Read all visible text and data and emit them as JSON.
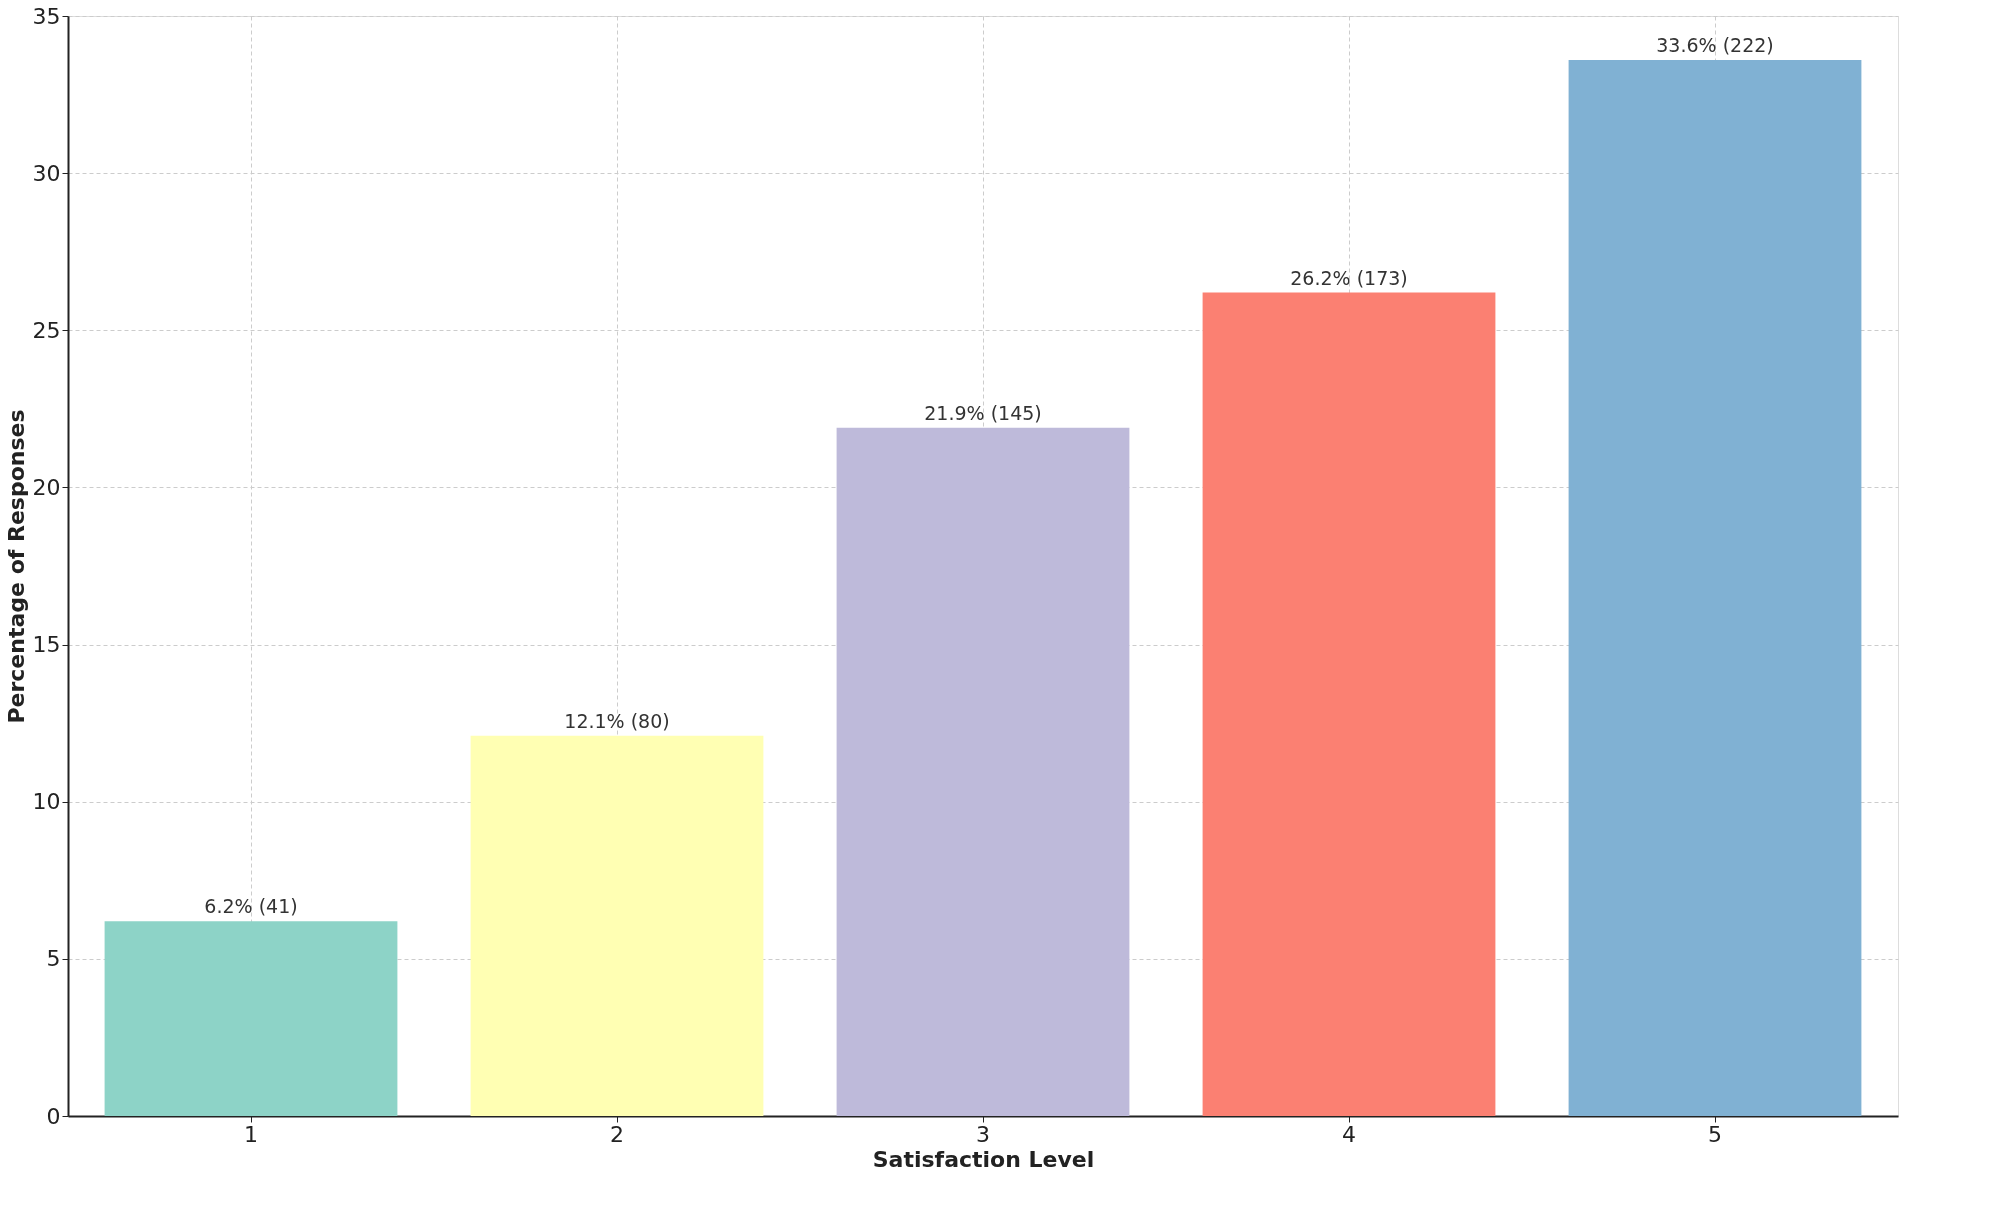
{
  "chart_data": {
    "type": "bar",
    "xlabel": "Satisfaction Level",
    "ylabel": "Percentage of Responses",
    "categories": [
      "1",
      "2",
      "3",
      "4",
      "5"
    ],
    "values": [
      6.2,
      12.1,
      21.9,
      26.2,
      33.6
    ],
    "colors": [
      "#8dd3c7",
      "#ffffb3",
      "#bebada",
      "#fb8072",
      "#80b1d3"
    ],
    "value_labels": [
      "6.2% (41)",
      "12.1% (80)",
      "21.9% (145)",
      "26.2% (173)",
      "33.6% (222)"
    ],
    "ylim": [
      0,
      35
    ],
    "yticks": [
      0,
      5,
      10,
      15,
      20,
      25,
      30,
      35
    ],
    "grid": true
  }
}
